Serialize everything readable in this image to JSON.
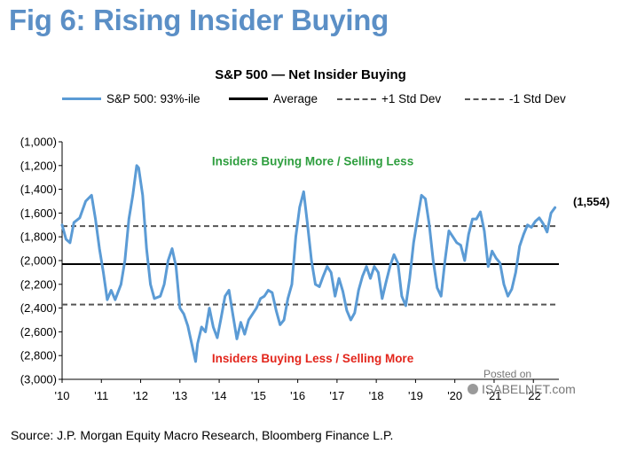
{
  "figure": {
    "title": "Fig 6: Rising Insider Buying",
    "source": "Source: J.P. Morgan Equity Macro Research, Bloomberg Finance L.P.",
    "watermark_posted": "Posted on",
    "watermark_site": "ISABELNET.com"
  },
  "colors": {
    "title_blue": "#5b8fc6",
    "series_blue": "#5b9bd5",
    "average": "#000000",
    "std_dev": "#555555",
    "annotation_green": "#2e9e3e",
    "annotation_red": "#e3261c"
  },
  "chart_data": {
    "type": "line",
    "title": "S&P 500 — Net Insider Buying",
    "xlabel": "",
    "ylabel": "",
    "xlim": [
      2010.0,
      2022.65
    ],
    "ylim": [
      -3000,
      -1000
    ],
    "y_inverted": true,
    "grid": false,
    "legend_position": "top",
    "x_tick_labels": [
      "'10",
      "'11",
      "'12",
      "'13",
      "'14",
      "'15",
      "'16",
      "'17",
      "'18",
      "'19",
      "'20",
      "'21",
      "'22"
    ],
    "x_tick_values": [
      2010,
      2011,
      2012,
      2013,
      2014,
      2015,
      2016,
      2017,
      2018,
      2019,
      2020,
      2021,
      2022
    ],
    "y_tick_values": [
      -1000,
      -1200,
      -1400,
      -1600,
      -1800,
      -2000,
      -2200,
      -2400,
      -2600,
      -2800,
      -3000
    ],
    "y_tick_labels": [
      "(1,000)",
      "(1,200)",
      "(1,400)",
      "(1,600)",
      "(1,800)",
      "(2,000)",
      "(2,200)",
      "(2,400)",
      "(2,600)",
      "(2,800)",
      "(3,000)"
    ],
    "series": [
      {
        "name": "S&P 500: 93%-ile",
        "x": [
          2010.0,
          2010.1,
          2010.2,
          2010.3,
          2010.45,
          2010.6,
          2010.75,
          2010.85,
          2010.95,
          2011.05,
          2011.15,
          2011.25,
          2011.35,
          2011.5,
          2011.6,
          2011.7,
          2011.8,
          2011.9,
          2011.95,
          2012.05,
          2012.15,
          2012.25,
          2012.35,
          2012.5,
          2012.6,
          2012.7,
          2012.8,
          2012.9,
          2013.0,
          2013.1,
          2013.2,
          2013.3,
          2013.4,
          2013.45,
          2013.55,
          2013.65,
          2013.75,
          2013.85,
          2013.95,
          2014.05,
          2014.15,
          2014.25,
          2014.35,
          2014.45,
          2014.55,
          2014.65,
          2014.75,
          2014.85,
          2014.95,
          2015.05,
          2015.15,
          2015.25,
          2015.35,
          2015.45,
          2015.55,
          2015.65,
          2015.75,
          2015.85,
          2015.95,
          2016.05,
          2016.15,
          2016.25,
          2016.35,
          2016.45,
          2016.55,
          2016.65,
          2016.75,
          2016.85,
          2016.95,
          2017.05,
          2017.15,
          2017.25,
          2017.35,
          2017.45,
          2017.55,
          2017.65,
          2017.75,
          2017.85,
          2017.95,
          2018.05,
          2018.15,
          2018.25,
          2018.35,
          2018.45,
          2018.55,
          2018.65,
          2018.75,
          2018.85,
          2018.95,
          2019.05,
          2019.15,
          2019.25,
          2019.35,
          2019.45,
          2019.55,
          2019.65,
          2019.75,
          2019.85,
          2019.95,
          2020.05,
          2020.15,
          2020.25,
          2020.35,
          2020.45,
          2020.55,
          2020.65,
          2020.75,
          2020.85,
          2020.95,
          2021.05,
          2021.15,
          2021.25,
          2021.35,
          2021.45,
          2021.55,
          2021.65,
          2021.75,
          2021.85,
          2021.95,
          2022.05,
          2022.15,
          2022.25,
          2022.35,
          2022.45,
          2022.55
        ],
        "values": [
          -1700,
          -1820,
          -1850,
          -1680,
          -1640,
          -1500,
          -1450,
          -1650,
          -1900,
          -2100,
          -2330,
          -2250,
          -2330,
          -2200,
          -2000,
          -1650,
          -1450,
          -1200,
          -1220,
          -1450,
          -1900,
          -2200,
          -2320,
          -2300,
          -2200,
          -2000,
          -1900,
          -2050,
          -2400,
          -2450,
          -2550,
          -2700,
          -2850,
          -2700,
          -2560,
          -2600,
          -2400,
          -2560,
          -2650,
          -2480,
          -2300,
          -2250,
          -2460,
          -2660,
          -2520,
          -2620,
          -2500,
          -2450,
          -2400,
          -2320,
          -2300,
          -2250,
          -2270,
          -2420,
          -2540,
          -2500,
          -2320,
          -2200,
          -1800,
          -1550,
          -1420,
          -1700,
          -2000,
          -2200,
          -2220,
          -2130,
          -2050,
          -2100,
          -2300,
          -2150,
          -2260,
          -2420,
          -2500,
          -2440,
          -2250,
          -2130,
          -2050,
          -2150,
          -2050,
          -2100,
          -2320,
          -2180,
          -2050,
          -1950,
          -2020,
          -2300,
          -2380,
          -2150,
          -1850,
          -1650,
          -1450,
          -1480,
          -1700,
          -2000,
          -2230,
          -2300,
          -2000,
          -1750,
          -1800,
          -1850,
          -1870,
          -2000,
          -1780,
          -1650,
          -1650,
          -1590,
          -1750,
          -2050,
          -1920,
          -1980,
          -2020,
          -2200,
          -2300,
          -2240,
          -2100,
          -1880,
          -1780,
          -1700,
          -1720,
          -1670,
          -1640,
          -1690,
          -1760,
          -1600,
          -1554
        ]
      },
      {
        "name": "Average",
        "constant": -2030
      },
      {
        "name": "+1 Std Dev",
        "constant": -1710
      },
      {
        "name": "-1 Std Dev",
        "constant": -2370
      }
    ],
    "annotations": [
      {
        "text": "Insiders Buying More / Selling Less",
        "color": "#2e9e3e",
        "x": 2016.3,
        "y": -1160
      },
      {
        "text": "Insiders Buying Less / Selling More",
        "color": "#e3261c",
        "x": 2016.3,
        "y": -2820
      },
      {
        "text": "(1,554)",
        "color": "#000000",
        "x": 2022.6,
        "y": -1554
      }
    ]
  }
}
